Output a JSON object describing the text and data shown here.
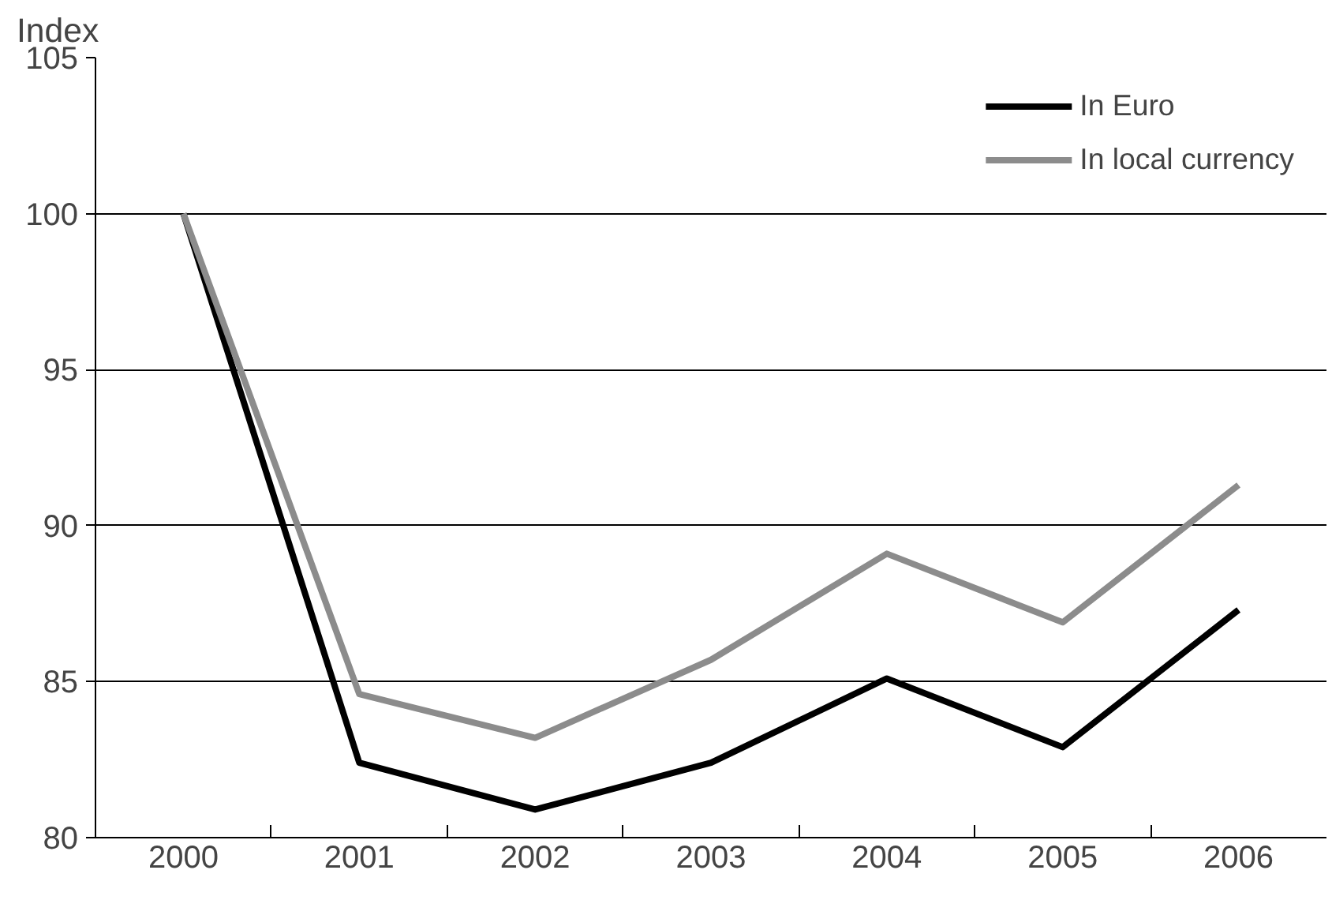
{
  "chart_data": {
    "type": "line",
    "ylabel": "Index",
    "categories": [
      "2000",
      "2001",
      "2002",
      "2003",
      "2004",
      "2005",
      "2006"
    ],
    "series": [
      {
        "name": "In Euro",
        "color": "#000000",
        "values": [
          100,
          82.4,
          80.9,
          82.4,
          85.1,
          82.9,
          87.3
        ]
      },
      {
        "name": "In local currency",
        "color": "#8c8c8c",
        "values": [
          100,
          84.6,
          83.2,
          85.7,
          89.1,
          86.9,
          91.3
        ]
      }
    ],
    "ylim": [
      80,
      105
    ],
    "yticks": [
      80,
      85,
      90,
      95,
      100,
      105
    ],
    "grid": "y",
    "legend": "top right",
    "marker": "none",
    "line_style": "solid"
  }
}
